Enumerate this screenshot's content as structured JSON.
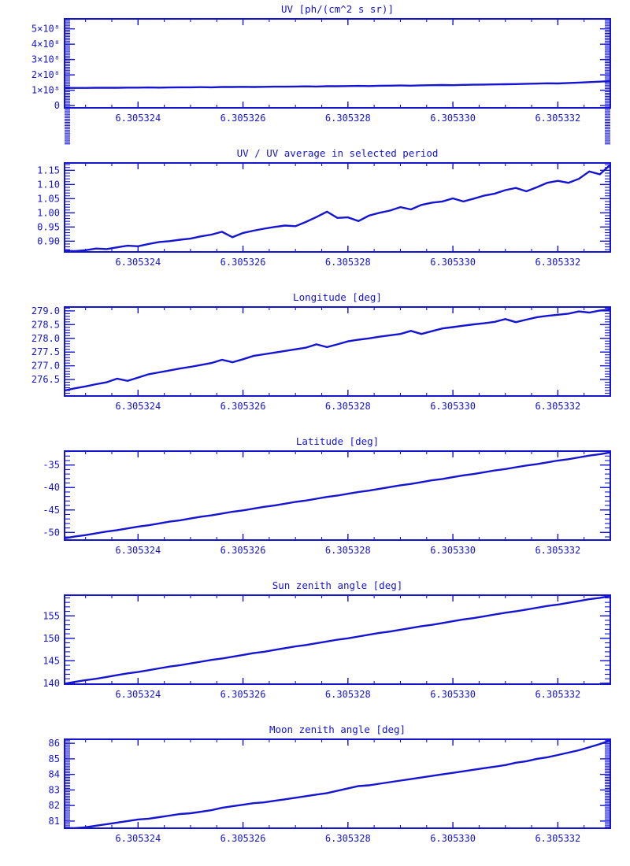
{
  "figure": {
    "background": "#ffffff",
    "accent": "#1414d2"
  },
  "chart_data": {
    "type": "line",
    "layout": "6 stacked panels, shared x scale, IDL-style blue plots on white, box axes with inward major/minor ticks on all four sides",
    "grid": false,
    "legend": false,
    "x_points": {
      "start": 6.3053226,
      "step": 2e-07,
      "count": 53
    },
    "x_axis": {
      "range": [
        6.3053226,
        6.305333
      ],
      "major_ticks": [
        6.305324,
        6.305326,
        6.305328,
        6.30533,
        6.305332
      ],
      "tick_labels": [
        "6.305324",
        "6.305326",
        "6.305328",
        "6.305330",
        "6.305332"
      ],
      "minor_step": 5e-07
    },
    "panels": [
      {
        "title": "UV [ph/(cm^2 s sr)]",
        "ylim": [
          -15000000.0,
          565000000.0
        ],
        "y_major_ticks": [
          0,
          100000000.0,
          200000000.0,
          300000000.0,
          400000000.0,
          500000000.0
        ],
        "y_tick_labels": [
          "0",
          "1×10⁸",
          "2×10⁸",
          "3×10⁸",
          "4×10⁸",
          "5×10⁸"
        ],
        "y_minor_step": 10000000.0,
        "values": [
          115000000.0,
          115000000.0,
          115000000.0,
          116000000.0,
          116000000.0,
          116000000.0,
          117000000.0,
          117000000.0,
          118000000.0,
          117000000.0,
          118000000.0,
          119000000.0,
          119000000.0,
          120000000.0,
          119000000.0,
          121000000.0,
          121000000.0,
          122000000.0,
          121000000.0,
          122000000.0,
          123000000.0,
          123000000.0,
          124000000.0,
          125000000.0,
          124000000.0,
          126000000.0,
          126000000.0,
          127000000.0,
          128000000.0,
          127000000.0,
          129000000.0,
          130000000.0,
          131000000.0,
          130000000.0,
          132000000.0,
          133000000.0,
          134000000.0,
          133000000.0,
          135000000.0,
          136000000.0,
          137000000.0,
          138000000.0,
          139000000.0,
          140000000.0,
          142000000.0,
          143000000.0,
          145000000.0,
          144000000.0,
          147000000.0,
          150000000.0,
          153000000.0,
          156000000.0,
          160000000.0
        ]
      },
      {
        "title": "UV / UV average in selected period",
        "ylim": [
          0.862,
          1.176
        ],
        "y_major_ticks": [
          0.9,
          0.95,
          1.0,
          1.05,
          1.1,
          1.15
        ],
        "y_tick_labels": [
          "0.90",
          "0.95",
          "1.00",
          "1.05",
          "1.10",
          "1.15"
        ],
        "y_minor_step": 0.01,
        "values": [
          0.866,
          0.865,
          0.868,
          0.874,
          0.872,
          0.878,
          0.884,
          0.882,
          0.89,
          0.897,
          0.9,
          0.905,
          0.909,
          0.917,
          0.923,
          0.933,
          0.914,
          0.929,
          0.937,
          0.944,
          0.95,
          0.955,
          0.953,
          0.968,
          0.985,
          1.004,
          0.982,
          0.984,
          0.971,
          0.99,
          1.0,
          1.008,
          1.02,
          1.012,
          1.028,
          1.036,
          1.04,
          1.051,
          1.04,
          1.05,
          1.061,
          1.068,
          1.08,
          1.088,
          1.076,
          1.09,
          1.106,
          1.113,
          1.106,
          1.12,
          1.146,
          1.136,
          1.17
        ]
      },
      {
        "title": "Longitude [deg]",
        "ylim": [
          275.9,
          279.14
        ],
        "y_major_ticks": [
          276.5,
          277.0,
          277.5,
          278.0,
          278.5,
          279.0
        ],
        "y_tick_labels": [
          "276.5",
          "277.0",
          "277.5",
          "278.0",
          "278.5",
          "279.0"
        ],
        "y_minor_step": 0.1,
        "values": [
          276.1,
          276.18,
          276.25,
          276.33,
          276.4,
          276.53,
          276.45,
          276.57,
          276.69,
          276.76,
          276.83,
          276.9,
          276.96,
          277.03,
          277.1,
          277.22,
          277.13,
          277.24,
          277.36,
          277.42,
          277.48,
          277.54,
          277.6,
          277.66,
          277.78,
          277.68,
          277.78,
          277.89,
          277.95,
          278.0,
          278.06,
          278.11,
          278.16,
          278.27,
          278.16,
          278.26,
          278.36,
          278.41,
          278.46,
          278.51,
          278.55,
          278.6,
          278.7,
          278.59,
          278.68,
          278.77,
          278.82,
          278.86,
          278.9,
          278.98,
          278.94,
          279.01,
          279.05
        ]
      },
      {
        "title": "Latitude [deg]",
        "ylim": [
          -51.7,
          -31.9
        ],
        "y_major_ticks": [
          -50,
          -45,
          -40,
          -35
        ],
        "y_tick_labels": [
          "-50",
          "-45",
          "-40",
          "-35"
        ],
        "y_minor_step": 1,
        "values": [
          -51.3,
          -50.9,
          -50.6,
          -50.2,
          -49.8,
          -49.5,
          -49.1,
          -48.7,
          -48.4,
          -48.0,
          -47.6,
          -47.3,
          -46.9,
          -46.5,
          -46.2,
          -45.8,
          -45.4,
          -45.1,
          -44.7,
          -44.3,
          -44.0,
          -43.6,
          -43.2,
          -42.9,
          -42.5,
          -42.1,
          -41.8,
          -41.4,
          -41.0,
          -40.7,
          -40.3,
          -39.9,
          -39.5,
          -39.2,
          -38.8,
          -38.4,
          -38.1,
          -37.7,
          -37.3,
          -37.0,
          -36.6,
          -36.2,
          -35.9,
          -35.5,
          -35.1,
          -34.8,
          -34.4,
          -34.0,
          -33.7,
          -33.3,
          -32.9,
          -32.6,
          -32.2
        ]
      },
      {
        "title": "Sun zenith angle [deg]",
        "ylim": [
          139.8,
          159.6
        ],
        "y_major_ticks": [
          140,
          145,
          150,
          155
        ],
        "y_tick_labels": [
          "140",
          "145",
          "150",
          "155"
        ],
        "y_minor_step": 1,
        "values": [
          139.9,
          140.3,
          140.7,
          141.0,
          141.4,
          141.8,
          142.2,
          142.5,
          142.9,
          143.3,
          143.7,
          144.0,
          144.4,
          144.8,
          145.2,
          145.5,
          145.9,
          146.3,
          146.7,
          147.0,
          147.4,
          147.8,
          148.2,
          148.5,
          148.9,
          149.3,
          149.7,
          150.0,
          150.4,
          150.8,
          151.2,
          151.5,
          151.9,
          152.3,
          152.7,
          153.0,
          153.4,
          153.8,
          154.2,
          154.5,
          154.9,
          155.3,
          155.7,
          156.0,
          156.4,
          156.8,
          157.2,
          157.5,
          157.9,
          158.3,
          158.7,
          159.0,
          159.4
        ]
      },
      {
        "title": "Moon zenith angle [deg]",
        "ylim": [
          80.54,
          86.26
        ],
        "y_major_ticks": [
          81,
          82,
          83,
          84,
          85,
          86
        ],
        "y_tick_labels": [
          "81",
          "82",
          "83",
          "84",
          "85",
          "86"
        ],
        "y_minor_step": 0.1,
        "values": [
          80.55,
          80.55,
          80.6,
          80.7,
          80.8,
          80.9,
          81.0,
          81.1,
          81.15,
          81.25,
          81.35,
          81.45,
          81.5,
          81.6,
          81.7,
          81.85,
          81.95,
          82.05,
          82.15,
          82.2,
          82.3,
          82.4,
          82.5,
          82.6,
          82.7,
          82.8,
          82.95,
          83.1,
          83.25,
          83.3,
          83.4,
          83.5,
          83.6,
          83.7,
          83.8,
          83.9,
          84.0,
          84.1,
          84.2,
          84.3,
          84.4,
          84.5,
          84.6,
          84.75,
          84.85,
          85.0,
          85.1,
          85.25,
          85.4,
          85.55,
          85.75,
          85.95,
          86.2
        ]
      }
    ]
  }
}
